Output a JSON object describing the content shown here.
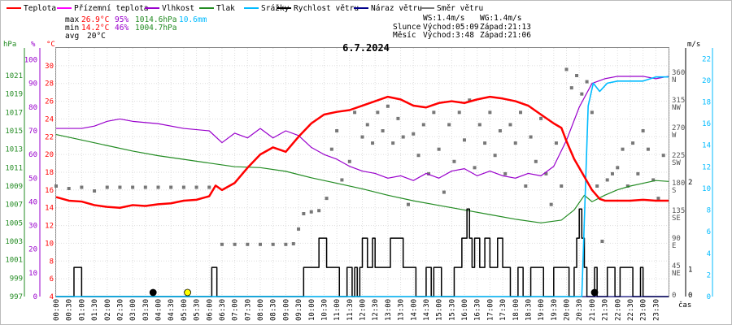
{
  "chart_data": {
    "type": "line",
    "title": "6.7.2024",
    "xlabel": "čas",
    "legend": [
      {
        "key": "temp",
        "label": "Teplota",
        "color": "#ff0000"
      },
      {
        "key": "feels",
        "label": "Přízemní teplota",
        "color": "#ff00ff"
      },
      {
        "key": "hum",
        "label": "Vlhkost",
        "color": "#9900cc"
      },
      {
        "key": "press",
        "label": "Tlak",
        "color": "#228b22"
      },
      {
        "key": "rain",
        "label": "Srážky",
        "color": "#00bbff"
      },
      {
        "key": "wind",
        "label": "Rychlost větru",
        "color": "#000000"
      },
      {
        "key": "gust",
        "label": "Náraz větru",
        "color": "#00008b"
      },
      {
        "key": "dir",
        "label": "Směr větru",
        "color": "#777777"
      }
    ],
    "stats": {
      "max_label": "max",
      "max_temp": "26.9°C",
      "max_hum": "95%",
      "max_press": "1014.6hPa",
      "max_rain": "10.6mm",
      "min_label": "min",
      "min_temp": "14.2°C",
      "min_hum": "46%",
      "min_press": "1004.7hPa",
      "avg_label": "avg",
      "avg_temp": "20°C"
    },
    "info": {
      "ws": "WS:1.4m/s",
      "wg": "WG:1.4m/s",
      "sun_label": "Slunce",
      "sunrise": "Východ:05:09",
      "sunset": "Západ:21:13",
      "moon_label": "Měsíc",
      "moonrise": "Východ:3:48",
      "moonset": "Západ:21:06"
    },
    "axes": {
      "hpa_unit": "hPa",
      "pct_unit": "%",
      "c_unit": "°C",
      "ms_unit": "m/s",
      "hpa_ticks": [
        "997",
        "999",
        "1001",
        "1003",
        "1005",
        "1007",
        "1009",
        "1011",
        "1013",
        "1015",
        "1017",
        "1019",
        "1021"
      ],
      "pct_ticks": [
        "0",
        "10",
        "20",
        "30",
        "40",
        "50",
        "60",
        "70",
        "80",
        "90",
        "100"
      ],
      "c_ticks": [
        "4",
        "6",
        "8",
        "10",
        "12",
        "14",
        "16",
        "18",
        "20",
        "22",
        "24",
        "26",
        "28",
        "30"
      ],
      "dir_ticks": [
        {
          "value": 45,
          "num": "45",
          "name": "NE"
        },
        {
          "value": 90,
          "num": "90",
          "name": "E"
        },
        {
          "value": 135,
          "num": "135",
          "name": "SE"
        },
        {
          "value": 180,
          "num": "180",
          "name": "S"
        },
        {
          "value": 225,
          "num": "225",
          "name": "SW"
        },
        {
          "value": 270,
          "num": "270",
          "name": "W"
        },
        {
          "value": 315,
          "num": "315",
          "name": "NW"
        },
        {
          "value": 360,
          "num": "360",
          "name": "N"
        }
      ],
      "dir_zero": "0",
      "ms_ticks": [
        "0",
        "2",
        "4",
        "6",
        "8",
        "10",
        "12",
        "14",
        "16",
        "18",
        "20",
        "22"
      ],
      "rain_ticks": [
        "0",
        "1",
        "2"
      ],
      "time_labels": [
        "00:00",
        "00:30",
        "01:00",
        "01:30",
        "02:00",
        "02:30",
        "03:00",
        "03:30",
        "04:00",
        "04:30",
        "05:00",
        "05:30",
        "06:00",
        "06:30",
        "07:00",
        "07:30",
        "08:00",
        "08:30",
        "09:00",
        "09:30",
        "10:00",
        "10:30",
        "11:00",
        "11:30",
        "12:00",
        "12:30",
        "13:00",
        "13:30",
        "14:00",
        "14:30",
        "15:00",
        "15:30",
        "16:00",
        "16:30",
        "17:00",
        "17:30",
        "18:00",
        "18:30",
        "19:00",
        "19:30",
        "20:00",
        "20:30",
        "21:00",
        "21:30",
        "22:00",
        "22:30",
        "23:00",
        "23:30"
      ]
    },
    "series": {
      "temp": {
        "name": "Teplota",
        "unit": "°C",
        "x": [
          0,
          0.5,
          1,
          1.5,
          2,
          2.5,
          3,
          3.5,
          4,
          4.5,
          5,
          5.5,
          6,
          6.25,
          6.5,
          7,
          7.5,
          8,
          8.5,
          9,
          9.5,
          10,
          10.5,
          11,
          11.5,
          12,
          12.5,
          13,
          13.5,
          14,
          14.5,
          15,
          15.5,
          16,
          16.5,
          17,
          17.5,
          18,
          18.5,
          19,
          19.5,
          19.8,
          20,
          20.3,
          20.6,
          21,
          21.3,
          21.5,
          22,
          22.5,
          23,
          23.5,
          24
        ],
        "y": [
          15.2,
          14.8,
          14.7,
          14.3,
          14.1,
          14.0,
          14.3,
          14.2,
          14.4,
          14.5,
          14.8,
          14.9,
          15.3,
          16.5,
          16.0,
          16.8,
          18.5,
          20.0,
          20.8,
          20.3,
          22.0,
          23.5,
          24.5,
          24.8,
          25.0,
          25.5,
          26.0,
          26.5,
          26.2,
          25.5,
          25.3,
          25.8,
          26.0,
          25.8,
          26.2,
          26.5,
          26.3,
          26.0,
          25.5,
          24.5,
          23.5,
          23.0,
          21.5,
          19.5,
          18.0,
          16.0,
          15.0,
          14.8,
          14.8,
          14.8,
          14.9,
          14.8,
          14.8
        ]
      },
      "hum": {
        "name": "Vlhkost",
        "unit": "%",
        "x": [
          0,
          1,
          1.5,
          2,
          2.5,
          3,
          4,
          5,
          6,
          6.5,
          7,
          7.5,
          8,
          8.5,
          9,
          9.5,
          10,
          10.5,
          11,
          11.5,
          12,
          12.5,
          13,
          13.5,
          14,
          14.5,
          15,
          15.5,
          16,
          16.5,
          17,
          17.5,
          18,
          18.5,
          19,
          19.5,
          20,
          20.5,
          21,
          21.5,
          22,
          23,
          23.5,
          24
        ],
        "y": [
          71,
          71,
          72,
          74,
          75,
          74,
          73,
          71,
          70,
          65,
          69,
          67,
          71,
          67,
          70,
          68,
          63,
          60,
          58,
          55,
          53,
          52,
          50,
          51,
          49,
          52,
          50,
          53,
          54,
          51,
          53,
          51,
          50,
          52,
          51,
          55,
          66,
          80,
          90,
          92,
          93,
          93,
          92,
          93
        ]
      },
      "press": {
        "name": "Tlak",
        "unit": "hPa",
        "x": [
          0,
          1,
          2,
          3,
          4,
          5,
          6,
          7,
          8,
          9,
          10,
          11,
          12,
          13,
          14,
          15,
          16,
          17,
          18,
          19,
          19.8,
          20.3,
          20.7,
          21,
          21.5,
          22,
          22.5,
          23,
          23.5,
          24
        ],
        "y": [
          1014.6,
          1014.0,
          1013.4,
          1012.8,
          1012.3,
          1011.9,
          1011.5,
          1011.1,
          1011.0,
          1010.6,
          1009.9,
          1009.3,
          1008.7,
          1008.0,
          1007.4,
          1006.9,
          1006.4,
          1005.9,
          1005.4,
          1005.0,
          1005.3,
          1006.4,
          1008.0,
          1007.3,
          1008.0,
          1008.6,
          1009.0,
          1009.3,
          1009.6,
          1009.5
        ]
      },
      "rain": {
        "name": "Srážky",
        "unit": "mm",
        "x": [
          0,
          20.6,
          20.85,
          21.05,
          21.3,
          21.6,
          22,
          23,
          23.5,
          24
        ],
        "y": [
          0,
          0,
          9.2,
          10.3,
          9.9,
          10.3,
          10.4,
          10.4,
          10.6,
          10.6
        ]
      },
      "wind": {
        "name": "Rychlost větru",
        "unit": "m/s",
        "x": [
          0,
          0.6,
          0.7,
          0.9,
          1.0,
          6.0,
          6.1,
          6.2,
          6.3,
          9.6,
          9.7,
          10.2,
          10.3,
          10.5,
          10.6,
          11.0,
          11.1,
          11.3,
          11.4,
          11.5,
          11.6,
          11.7,
          11.8,
          11.9,
          12.0,
          12.1,
          12.2,
          12.3,
          12.4,
          12.5,
          13.0,
          13.1,
          13.5,
          13.6,
          14.0,
          14.1,
          14.4,
          14.5,
          14.6,
          14.7,
          14.8,
          15.0,
          15.1,
          15.5,
          15.6,
          15.8,
          15.9,
          16.0,
          16.1,
          16.2,
          16.3,
          16.4,
          16.5,
          16.6,
          16.7,
          16.8,
          16.9,
          17.0,
          17.2,
          17.3,
          17.4,
          17.5,
          17.7,
          17.8,
          18.0,
          18.1,
          18.2,
          18.3,
          18.5,
          18.6,
          19.0,
          19.1,
          19.4,
          19.5,
          20.0,
          20.1,
          20.2,
          20.3,
          20.4,
          20.5,
          20.6,
          20.7,
          20.8,
          21.0,
          21.1,
          21.2,
          21.5,
          21.6,
          21.8,
          21.9,
          22.0,
          22.1,
          22.5,
          22.6,
          22.8,
          22.9,
          23.0,
          24.0
        ],
        "y": [
          0,
          0,
          2.7,
          2.7,
          0,
          0,
          2.7,
          2.7,
          0,
          0,
          2.7,
          2.7,
          5.4,
          5.4,
          2.7,
          2.7,
          0,
          0,
          2.7,
          2.7,
          0,
          2.7,
          0,
          2.7,
          5.4,
          5.4,
          2.7,
          2.7,
          5.4,
          2.7,
          2.7,
          5.4,
          5.4,
          2.7,
          2.7,
          0,
          0,
          2.7,
          2.7,
          0,
          2.7,
          2.7,
          0,
          0,
          2.7,
          2.7,
          5.4,
          5.4,
          8.1,
          5.4,
          2.7,
          5.4,
          5.4,
          2.7,
          2.7,
          5.4,
          5.4,
          2.7,
          2.7,
          5.4,
          5.4,
          2.7,
          2.7,
          0,
          0,
          2.7,
          2.7,
          0,
          0,
          2.7,
          2.7,
          0,
          0,
          2.7,
          2.7,
          0,
          0,
          2.7,
          5.4,
          8.1,
          5.4,
          2.7,
          0,
          0,
          2.7,
          0,
          0,
          2.7,
          2.7,
          0,
          0,
          2.7,
          2.7,
          0,
          0,
          2.7,
          0,
          0
        ]
      },
      "gust": {
        "name": "Náraz větru",
        "unit": "m/s",
        "x": [
          0,
          24
        ],
        "y": [
          0,
          0
        ]
      },
      "dir": {
        "name": "Směr větru",
        "unit": "°",
        "points": [
          [
            0,
            180
          ],
          [
            0.5,
            176
          ],
          [
            1,
            178
          ],
          [
            1.5,
            172
          ],
          [
            2,
            178
          ],
          [
            2.5,
            178
          ],
          [
            3,
            178
          ],
          [
            3.5,
            178
          ],
          [
            4,
            178
          ],
          [
            4.5,
            178
          ],
          [
            5,
            178
          ],
          [
            5.5,
            178
          ],
          [
            6,
            178
          ],
          [
            6.5,
            85
          ],
          [
            7,
            85
          ],
          [
            7.5,
            85
          ],
          [
            8,
            85
          ],
          [
            8.5,
            85
          ],
          [
            9,
            85
          ],
          [
            9.3,
            86
          ],
          [
            9.5,
            110
          ],
          [
            9.7,
            135
          ],
          [
            10,
            138
          ],
          [
            10.3,
            140
          ],
          [
            10.6,
            160
          ],
          [
            10.8,
            240
          ],
          [
            11,
            270
          ],
          [
            11.2,
            190
          ],
          [
            11.5,
            220
          ],
          [
            11.7,
            300
          ],
          [
            12,
            260
          ],
          [
            12.2,
            280
          ],
          [
            12.4,
            250
          ],
          [
            12.6,
            300
          ],
          [
            12.8,
            270
          ],
          [
            13,
            310
          ],
          [
            13.2,
            250
          ],
          [
            13.4,
            290
          ],
          [
            13.6,
            260
          ],
          [
            13.8,
            150
          ],
          [
            14,
            265
          ],
          [
            14.2,
            230
          ],
          [
            14.4,
            280
          ],
          [
            14.6,
            200
          ],
          [
            14.8,
            300
          ],
          [
            15,
            240
          ],
          [
            15.2,
            170
          ],
          [
            15.4,
            280
          ],
          [
            15.6,
            220
          ],
          [
            15.8,
            300
          ],
          [
            16,
            255
          ],
          [
            16.2,
            320
          ],
          [
            16.4,
            210
          ],
          [
            16.6,
            280
          ],
          [
            16.8,
            250
          ],
          [
            17,
            300
          ],
          [
            17.2,
            230
          ],
          [
            17.4,
            270
          ],
          [
            17.6,
            200
          ],
          [
            17.8,
            280
          ],
          [
            18,
            250
          ],
          [
            18.2,
            300
          ],
          [
            18.4,
            180
          ],
          [
            18.6,
            260
          ],
          [
            18.8,
            220
          ],
          [
            19,
            290
          ],
          [
            19.2,
            200
          ],
          [
            19.4,
            150
          ],
          [
            19.6,
            250
          ],
          [
            19.8,
            180
          ],
          [
            20,
            370
          ],
          [
            20.2,
            340
          ],
          [
            20.4,
            360
          ],
          [
            20.6,
            330
          ],
          [
            20.8,
            350
          ],
          [
            21,
            300
          ],
          [
            21.2,
            180
          ],
          [
            21.4,
            90
          ],
          [
            21.6,
            190
          ],
          [
            21.8,
            200
          ],
          [
            22,
            210
          ],
          [
            22.2,
            240
          ],
          [
            22.4,
            180
          ],
          [
            22.6,
            250
          ],
          [
            22.8,
            200
          ],
          [
            23,
            270
          ],
          [
            23.2,
            240
          ],
          [
            23.4,
            190
          ],
          [
            23.6,
            160
          ],
          [
            23.8,
            230
          ]
        ]
      }
    },
    "markers": [
      {
        "type": "moonrise",
        "time": 3.8,
        "color": "#000000"
      },
      {
        "type": "sunrise",
        "time": 5.15,
        "color": "#ffff00"
      },
      {
        "type": "moonset",
        "time": 21.1,
        "color": "#000000"
      }
    ]
  }
}
